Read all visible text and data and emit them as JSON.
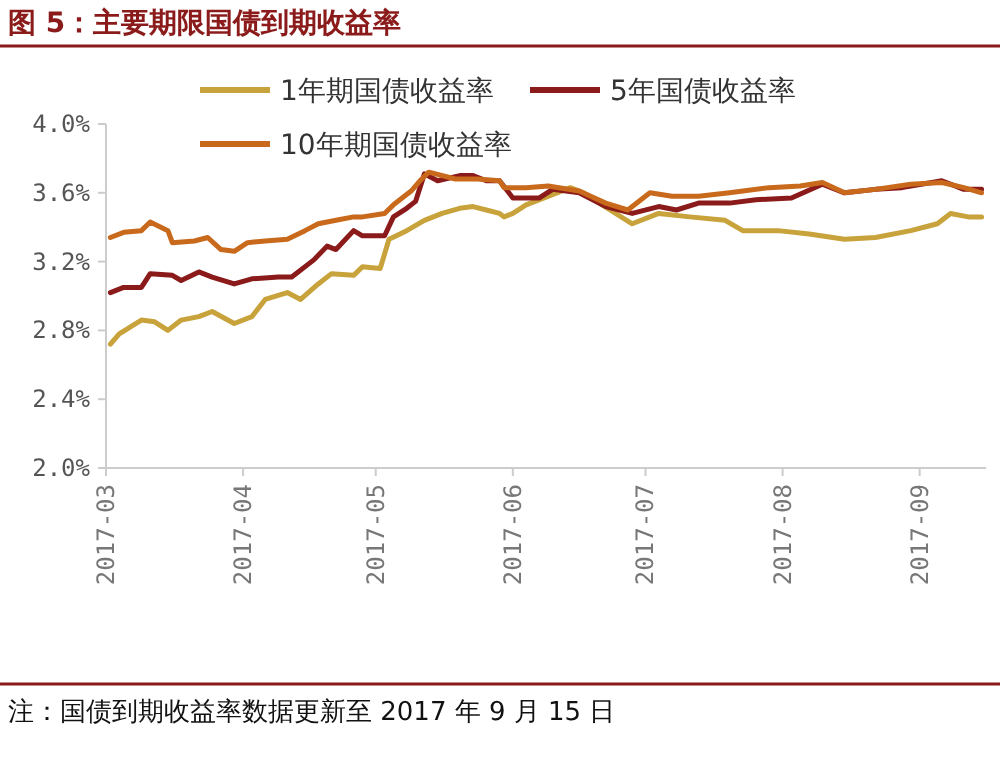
{
  "chart_data": {
    "type": "line",
    "title": "图 5：主要期限国债到期收益率",
    "annotations": [
      "注：国债到期收益率数据更新至 2017 年 9 月 15 日"
    ],
    "xlim": [
      "2017-03-01",
      "2017-09-16"
    ],
    "xticks": [
      "2017-03",
      "2017-04",
      "2017-05",
      "2017-06",
      "2017-07",
      "2017-08",
      "2017-09"
    ],
    "ylim": [
      2,
      4
    ],
    "yticks": [
      {
        "value": 2,
        "label": "2.0%"
      },
      {
        "value": 2.4,
        "label": "2.4%"
      },
      {
        "value": 2.8,
        "label": "2.8%"
      },
      {
        "value": 3.2,
        "label": "3.2%"
      },
      {
        "value": 3.6,
        "label": "3.6%"
      },
      {
        "value": 4,
        "label": "4.0%"
      }
    ],
    "legend": "top",
    "grid": false,
    "marker": "none",
    "line_style": "solid",
    "series": [
      {
        "name": "1年期国债收益率",
        "color": "#c8a23a",
        "x": [
          "2017-03-02",
          "2017-03-04",
          "2017-03-09",
          "2017-03-12",
          "2017-03-15",
          "2017-03-18",
          "2017-03-22",
          "2017-03-25",
          "2017-03-30",
          "2017-04-03",
          "2017-04-06",
          "2017-04-11",
          "2017-04-14",
          "2017-04-18",
          "2017-04-21",
          "2017-04-26",
          "2017-04-28",
          "2017-05-02",
          "2017-05-04",
          "2017-05-08",
          "2017-05-12",
          "2017-05-16",
          "2017-05-20",
          "2017-05-23",
          "2017-05-26",
          "2017-05-29",
          "2017-05-30",
          "2017-06-01",
          "2017-06-04",
          "2017-06-14",
          "2017-06-17",
          "2017-06-23",
          "2017-06-28",
          "2017-07-04",
          "2017-07-11",
          "2017-07-19",
          "2017-07-23",
          "2017-07-31",
          "2017-08-07",
          "2017-08-15",
          "2017-08-22",
          "2017-08-30",
          "2017-09-05",
          "2017-09-08",
          "2017-09-12",
          "2017-09-15"
        ],
        "values": [
          2.72,
          2.78,
          2.86,
          2.85,
          2.8,
          2.86,
          2.88,
          2.91,
          2.84,
          2.88,
          2.98,
          3.02,
          2.98,
          3.07,
          3.13,
          3.12,
          3.17,
          3.16,
          3.33,
          3.38,
          3.44,
          3.48,
          3.51,
          3.52,
          3.5,
          3.48,
          3.46,
          3.48,
          3.53,
          3.63,
          3.6,
          3.5,
          3.42,
          3.48,
          3.46,
          3.44,
          3.38,
          3.38,
          3.36,
          3.33,
          3.34,
          3.38,
          3.42,
          3.48,
          3.46,
          3.46
        ]
      },
      {
        "name": "5年国债收益率",
        "color": "#8b1a1a",
        "x": [
          "2017-03-02",
          "2017-03-05",
          "2017-03-09",
          "2017-03-11",
          "2017-03-16",
          "2017-03-18",
          "2017-03-22",
          "2017-03-25",
          "2017-03-30",
          "2017-04-03",
          "2017-04-09",
          "2017-04-12",
          "2017-04-17",
          "2017-04-20",
          "2017-04-22",
          "2017-04-26",
          "2017-04-28",
          "2017-05-03",
          "2017-05-05",
          "2017-05-08",
          "2017-05-10",
          "2017-05-12",
          "2017-05-15",
          "2017-05-20",
          "2017-05-23",
          "2017-05-26",
          "2017-05-29",
          "2017-06-01",
          "2017-06-07",
          "2017-06-10",
          "2017-06-16",
          "2017-06-22",
          "2017-06-28",
          "2017-07-04",
          "2017-07-08",
          "2017-07-13",
          "2017-07-20",
          "2017-07-26",
          "2017-08-03",
          "2017-08-10",
          "2017-08-15",
          "2017-08-22",
          "2017-08-28",
          "2017-09-06",
          "2017-09-11",
          "2017-09-15"
        ],
        "values": [
          3.02,
          3.05,
          3.05,
          3.13,
          3.12,
          3.09,
          3.14,
          3.11,
          3.07,
          3.1,
          3.11,
          3.11,
          3.21,
          3.29,
          3.27,
          3.38,
          3.35,
          3.35,
          3.46,
          3.51,
          3.55,
          3.71,
          3.67,
          3.7,
          3.7,
          3.67,
          3.67,
          3.57,
          3.57,
          3.62,
          3.6,
          3.52,
          3.48,
          3.52,
          3.5,
          3.54,
          3.54,
          3.56,
          3.57,
          3.65,
          3.6,
          3.62,
          3.63,
          3.67,
          3.62,
          3.62
        ]
      },
      {
        "name": "10年期国债收益率",
        "color": "#c8691c",
        "x": [
          "2017-03-02",
          "2017-03-05",
          "2017-03-09",
          "2017-03-11",
          "2017-03-15",
          "2017-03-16",
          "2017-03-21",
          "2017-03-24",
          "2017-03-27",
          "2017-03-30",
          "2017-04-02",
          "2017-04-06",
          "2017-04-11",
          "2017-04-15",
          "2017-04-18",
          "2017-04-22",
          "2017-04-26",
          "2017-04-28",
          "2017-05-03",
          "2017-05-05",
          "2017-05-09",
          "2017-05-11",
          "2017-05-13",
          "2017-05-19",
          "2017-05-24",
          "2017-05-29",
          "2017-05-30",
          "2017-06-04",
          "2017-06-09",
          "2017-06-16",
          "2017-06-22",
          "2017-06-27",
          "2017-07-02",
          "2017-07-07",
          "2017-07-13",
          "2017-07-20",
          "2017-07-29",
          "2017-08-05",
          "2017-08-10",
          "2017-08-15",
          "2017-08-22",
          "2017-08-30",
          "2017-09-06",
          "2017-09-11",
          "2017-09-15"
        ],
        "values": [
          3.34,
          3.37,
          3.38,
          3.43,
          3.38,
          3.31,
          3.32,
          3.34,
          3.27,
          3.26,
          3.31,
          3.32,
          3.33,
          3.38,
          3.42,
          3.44,
          3.46,
          3.46,
          3.48,
          3.53,
          3.61,
          3.67,
          3.72,
          3.68,
          3.68,
          3.67,
          3.63,
          3.63,
          3.64,
          3.61,
          3.54,
          3.5,
          3.6,
          3.58,
          3.58,
          3.6,
          3.63,
          3.64,
          3.66,
          3.6,
          3.62,
          3.65,
          3.66,
          3.63,
          3.6
        ]
      }
    ]
  }
}
